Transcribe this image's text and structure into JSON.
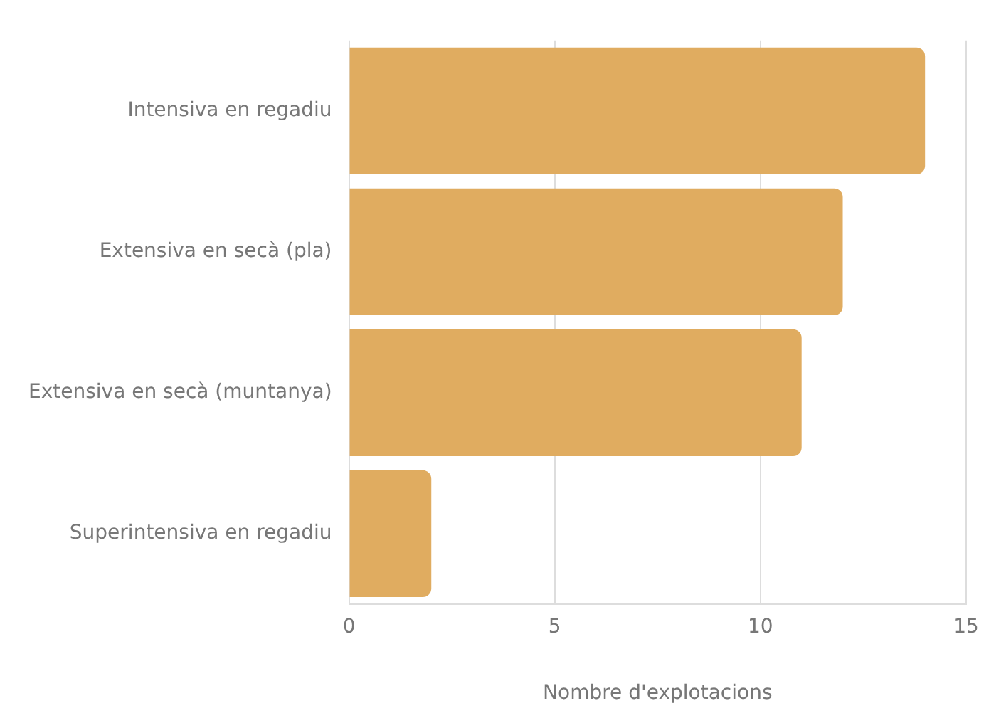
{
  "chart_data": {
    "type": "bar",
    "orientation": "horizontal",
    "categories": [
      "Intensiva en regadiu",
      "Extensiva en secà (pla)",
      "Extensiva en secà (muntanya)",
      "Superintensiva en regadiu"
    ],
    "values": [
      14,
      12,
      11,
      2
    ],
    "color": "#e0ac60",
    "xlabel": "Nombre d'explotacions",
    "xlim": [
      0,
      15
    ],
    "xticks": [
      0,
      5,
      10,
      15
    ],
    "grid": "x",
    "legend": false
  }
}
